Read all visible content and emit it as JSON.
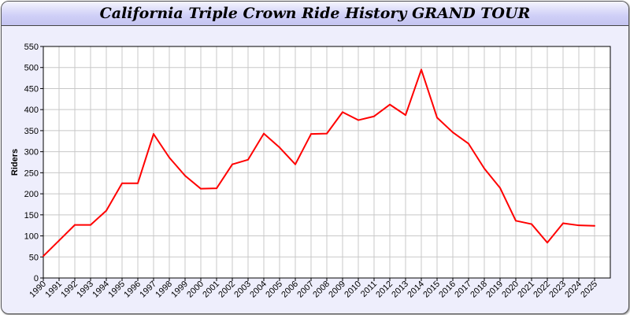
{
  "chart_data": {
    "type": "line",
    "title": "California Triple Crown Ride History GRAND TOUR",
    "xlabel": "",
    "ylabel": "Riders",
    "ylim": [
      0,
      550
    ],
    "yticks": [
      0,
      50,
      100,
      150,
      200,
      250,
      300,
      350,
      400,
      450,
      500,
      550
    ],
    "grid": true,
    "line_color": "#ff0000",
    "x": [
      1990,
      1991,
      1992,
      1993,
      1994,
      1995,
      1996,
      1997,
      1998,
      1999,
      2000,
      2001,
      2002,
      2003,
      2004,
      2005,
      2006,
      2007,
      2008,
      2009,
      2010,
      2011,
      2012,
      2013,
      2014,
      2015,
      2016,
      2017,
      2018,
      2019,
      2020,
      2021,
      2022,
      2023,
      2024,
      2025
    ],
    "values": [
      52,
      89,
      126,
      126,
      160,
      225,
      225,
      342,
      286,
      243,
      212,
      213,
      270,
      281,
      343,
      310,
      270,
      342,
      343,
      394,
      375,
      384,
      412,
      387,
      495,
      381,
      346,
      319,
      260,
      214,
      136,
      128,
      84,
      130,
      125,
      124
    ]
  }
}
